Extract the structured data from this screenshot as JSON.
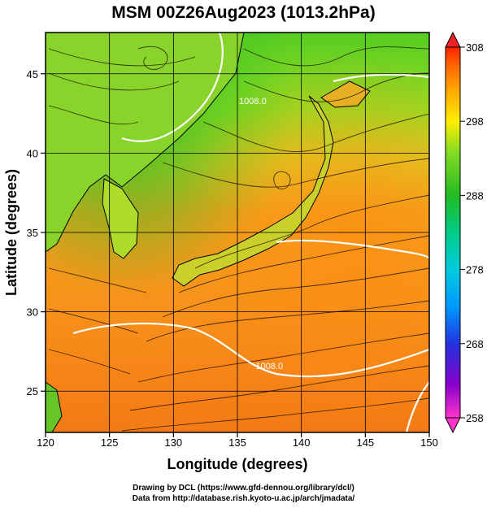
{
  "title": "MSM 00Z26Aug2023 (1013.2hPa)",
  "x_axis": {
    "label": "Longitude (degrees)",
    "ticks": [
      {
        "value": 120,
        "label": "120"
      },
      {
        "value": 125,
        "label": "125"
      },
      {
        "value": 130,
        "label": "130"
      },
      {
        "value": 135,
        "label": "135"
      },
      {
        "value": 140,
        "label": "140"
      },
      {
        "value": 145,
        "label": "145"
      },
      {
        "value": 150,
        "label": "150"
      }
    ]
  },
  "y_axis": {
    "label": "Latitude  (degrees)",
    "ticks": [
      {
        "value": 25,
        "label": "25"
      },
      {
        "value": 30,
        "label": "30"
      },
      {
        "value": 35,
        "label": "35"
      },
      {
        "value": 40,
        "label": "40"
      },
      {
        "value": 45,
        "label": "45"
      }
    ]
  },
  "map": {
    "lon_range": [
      120,
      150
    ],
    "lat_range": [
      22.4,
      47.6
    ],
    "grid": true,
    "contour_labels": [
      {
        "text": "1008.0",
        "lon": 136.2,
        "lat": 43.1
      },
      {
        "text": "1008.0",
        "lon": 137.5,
        "lat": 26.4
      }
    ]
  },
  "colorbar": {
    "min": 258,
    "max": 308,
    "ticks": [
      {
        "value": 308,
        "label": "308"
      },
      {
        "value": 298,
        "label": "298"
      },
      {
        "value": 288,
        "label": "288"
      },
      {
        "value": 278,
        "label": "278"
      },
      {
        "value": 268,
        "label": "268"
      },
      {
        "value": 258,
        "label": "258"
      }
    ],
    "colors": [
      "#ff33cc",
      "#8800cc",
      "#2233dd",
      "#0099ff",
      "#00ccdd",
      "#00cc88",
      "#22bb22",
      "#88dd22",
      "#ffee00",
      "#ffaa00",
      "#ff6600",
      "#ff2200"
    ]
  },
  "credits": {
    "line1": "Drawing by DCL (https://www.gfd-dennou.org/library/dcl/)",
    "line2": "Data from http://database.rish.kyoto-u.ac.jp/arch/jmadata/"
  }
}
